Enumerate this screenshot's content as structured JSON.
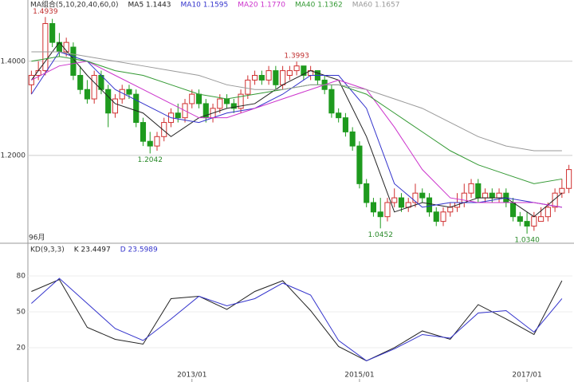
{
  "chart_data": [
    {
      "type": "candlestick",
      "legend_title": "MA组合(5,10,20,40,60,0)",
      "count_label": "96月",
      "up_color": "#d03030",
      "down_color": "#1e9a1e",
      "xlim": [
        -0.5,
        77.5
      ],
      "ylim": [
        1.017,
        1.53
      ],
      "yticks": [
        {
          "value": 1.4,
          "label": "1.4000"
        },
        {
          "value": 1.2,
          "label": "1.2000"
        }
      ],
      "grid": true,
      "candles": [
        [
          1.35,
          1.38,
          1.33,
          1.37
        ],
        [
          1.37,
          1.4,
          1.36,
          1.38
        ],
        [
          1.38,
          1.4939,
          1.37,
          1.48
        ],
        [
          1.48,
          1.49,
          1.43,
          1.44
        ],
        [
          1.44,
          1.46,
          1.41,
          1.42
        ],
        [
          1.42,
          1.45,
          1.41,
          1.44
        ],
        [
          1.43,
          1.44,
          1.36,
          1.37
        ],
        [
          1.37,
          1.39,
          1.33,
          1.34
        ],
        [
          1.34,
          1.36,
          1.31,
          1.32
        ],
        [
          1.32,
          1.38,
          1.31,
          1.37
        ],
        [
          1.37,
          1.38,
          1.33,
          1.34
        ],
        [
          1.34,
          1.35,
          1.26,
          1.29
        ],
        [
          1.29,
          1.33,
          1.28,
          1.32
        ],
        [
          1.32,
          1.35,
          1.31,
          1.34
        ],
        [
          1.34,
          1.35,
          1.32,
          1.33
        ],
        [
          1.33,
          1.34,
          1.26,
          1.27
        ],
        [
          1.27,
          1.28,
          1.22,
          1.23
        ],
        [
          1.23,
          1.25,
          1.2042,
          1.22
        ],
        [
          1.22,
          1.25,
          1.21,
          1.24
        ],
        [
          1.24,
          1.28,
          1.23,
          1.27
        ],
        [
          1.27,
          1.3,
          1.26,
          1.29
        ],
        [
          1.29,
          1.31,
          1.27,
          1.28
        ],
        [
          1.28,
          1.32,
          1.27,
          1.31
        ],
        [
          1.31,
          1.34,
          1.3,
          1.33
        ],
        [
          1.33,
          1.34,
          1.3,
          1.31
        ],
        [
          1.31,
          1.32,
          1.27,
          1.28
        ],
        [
          1.28,
          1.31,
          1.27,
          1.3
        ],
        [
          1.3,
          1.33,
          1.29,
          1.32
        ],
        [
          1.32,
          1.33,
          1.3,
          1.31
        ],
        [
          1.31,
          1.32,
          1.29,
          1.3
        ],
        [
          1.3,
          1.34,
          1.29,
          1.33
        ],
        [
          1.33,
          1.37,
          1.32,
          1.36
        ],
        [
          1.36,
          1.38,
          1.35,
          1.37
        ],
        [
          1.37,
          1.38,
          1.35,
          1.36
        ],
        [
          1.36,
          1.39,
          1.35,
          1.38
        ],
        [
          1.38,
          1.39,
          1.34,
          1.35
        ],
        [
          1.35,
          1.39,
          1.34,
          1.38
        ],
        [
          1.37,
          1.39,
          1.36,
          1.38
        ],
        [
          1.38,
          1.3993,
          1.37,
          1.39
        ],
        [
          1.39,
          1.39,
          1.36,
          1.37
        ],
        [
          1.37,
          1.39,
          1.36,
          1.38
        ],
        [
          1.38,
          1.38,
          1.35,
          1.36
        ],
        [
          1.36,
          1.37,
          1.33,
          1.34
        ],
        [
          1.34,
          1.35,
          1.28,
          1.29
        ],
        [
          1.29,
          1.3,
          1.27,
          1.28
        ],
        [
          1.28,
          1.29,
          1.24,
          1.25
        ],
        [
          1.25,
          1.26,
          1.21,
          1.22
        ],
        [
          1.22,
          1.23,
          1.13,
          1.14
        ],
        [
          1.14,
          1.15,
          1.09,
          1.1
        ],
        [
          1.1,
          1.11,
          1.07,
          1.08
        ],
        [
          1.08,
          1.11,
          1.0452,
          1.07
        ],
        [
          1.07,
          1.11,
          1.06,
          1.1
        ],
        [
          1.1,
          1.13,
          1.09,
          1.11
        ],
        [
          1.11,
          1.12,
          1.08,
          1.09
        ],
        [
          1.09,
          1.11,
          1.08,
          1.1
        ],
        [
          1.1,
          1.14,
          1.09,
          1.12
        ],
        [
          1.12,
          1.13,
          1.1,
          1.11
        ],
        [
          1.11,
          1.12,
          1.07,
          1.08
        ],
        [
          1.08,
          1.09,
          1.05,
          1.06
        ],
        [
          1.06,
          1.09,
          1.05,
          1.08
        ],
        [
          1.08,
          1.1,
          1.07,
          1.09
        ],
        [
          1.09,
          1.12,
          1.08,
          1.1
        ],
        [
          1.1,
          1.14,
          1.09,
          1.12
        ],
        [
          1.12,
          1.15,
          1.11,
          1.14
        ],
        [
          1.14,
          1.15,
          1.1,
          1.11
        ],
        [
          1.11,
          1.13,
          1.1,
          1.12
        ],
        [
          1.12,
          1.13,
          1.1,
          1.11
        ],
        [
          1.11,
          1.13,
          1.1,
          1.12
        ],
        [
          1.12,
          1.13,
          1.09,
          1.1
        ],
        [
          1.1,
          1.11,
          1.06,
          1.07
        ],
        [
          1.07,
          1.08,
          1.05,
          1.06
        ],
        [
          1.06,
          1.08,
          1.034,
          1.05
        ],
        [
          1.05,
          1.08,
          1.04,
          1.07
        ],
        [
          1.06,
          1.09,
          1.06,
          1.07
        ],
        [
          1.07,
          1.1,
          1.06,
          1.09
        ],
        [
          1.09,
          1.13,
          1.08,
          1.12
        ],
        [
          1.12,
          1.15,
          1.11,
          1.13
        ],
        [
          1.13,
          1.18,
          1.12,
          1.17
        ]
      ],
      "high_labels": [
        {
          "candle": 2,
          "label": "1.4939"
        },
        {
          "candle": 38,
          "label": "1.3993"
        }
      ],
      "low_labels": [
        {
          "candle": 17,
          "label": "1.2042"
        },
        {
          "candle": 50,
          "label": "1.0452"
        },
        {
          "candle": 71,
          "label": "1.0340"
        }
      ],
      "x": [
        0,
        4,
        8,
        12,
        16,
        20,
        24,
        28,
        32,
        36,
        40,
        44,
        48,
        52,
        56,
        60,
        64,
        68,
        72,
        76
      ],
      "series": [
        {
          "name": "MA5 1.1443",
          "color": "#222222",
          "values": [
            1.36,
            1.44,
            1.37,
            1.31,
            1.29,
            1.24,
            1.28,
            1.3,
            1.31,
            1.35,
            1.38,
            1.36,
            1.24,
            1.08,
            1.1,
            1.09,
            1.11,
            1.11,
            1.07,
            1.12
          ]
        },
        {
          "name": "MA10 1.1595",
          "color": "#3333cc",
          "values": [
            1.33,
            1.42,
            1.4,
            1.34,
            1.31,
            1.28,
            1.27,
            1.29,
            1.3,
            1.33,
            1.37,
            1.37,
            1.3,
            1.14,
            1.09,
            1.1,
            1.1,
            1.11,
            1.1,
            1.09
          ]
        },
        {
          "name": "MA20 1.1770",
          "color": "#cc33cc",
          "values": [
            1.36,
            1.39,
            1.4,
            1.37,
            1.34,
            1.31,
            1.28,
            1.28,
            1.3,
            1.32,
            1.34,
            1.36,
            1.34,
            1.26,
            1.17,
            1.11,
            1.1,
            1.1,
            1.1,
            1.09
          ]
        },
        {
          "name": "MA40 1.1362",
          "color": "#339933",
          "values": [
            1.4,
            1.41,
            1.4,
            1.38,
            1.37,
            1.35,
            1.33,
            1.32,
            1.33,
            1.34,
            1.35,
            1.35,
            1.33,
            1.29,
            1.25,
            1.21,
            1.18,
            1.16,
            1.14,
            1.15
          ]
        },
        {
          "name": "MA60 1.1657",
          "color": "#999999",
          "values": [
            1.42,
            1.42,
            1.41,
            1.4,
            1.39,
            1.38,
            1.37,
            1.35,
            1.34,
            1.34,
            1.35,
            1.35,
            1.34,
            1.32,
            1.3,
            1.27,
            1.24,
            1.22,
            1.21,
            1.21
          ]
        }
      ]
    },
    {
      "type": "line",
      "legend_title": "KD(9,3,3)",
      "xlim": [
        -0.5,
        77.5
      ],
      "ylim": [
        -8.7,
        106
      ],
      "yticks": [
        80,
        50,
        20
      ],
      "grid": true,
      "xticks": [
        {
          "value": 23,
          "label": "2013/01"
        },
        {
          "value": 47,
          "label": "2015/01"
        },
        {
          "value": 71,
          "label": "2017/01"
        }
      ],
      "x": [
        0,
        4,
        8,
        12,
        16,
        20,
        24,
        28,
        32,
        36,
        40,
        44,
        48,
        52,
        56,
        60,
        64,
        68,
        72,
        76
      ],
      "series": [
        {
          "name": "K 23.4497",
          "color": "#222222",
          "values": [
            67,
            77,
            37,
            27,
            23,
            61,
            63,
            52,
            67,
            76,
            51,
            21,
            9,
            20,
            34,
            27,
            56,
            44,
            31,
            76
          ]
        },
        {
          "name": "D 23.5989",
          "color": "#3333cc",
          "values": [
            57,
            78,
            57,
            36,
            26,
            44,
            63,
            55,
            61,
            74,
            64,
            26,
            9,
            19,
            31,
            28,
            49,
            51,
            33,
            61
          ]
        }
      ]
    }
  ]
}
